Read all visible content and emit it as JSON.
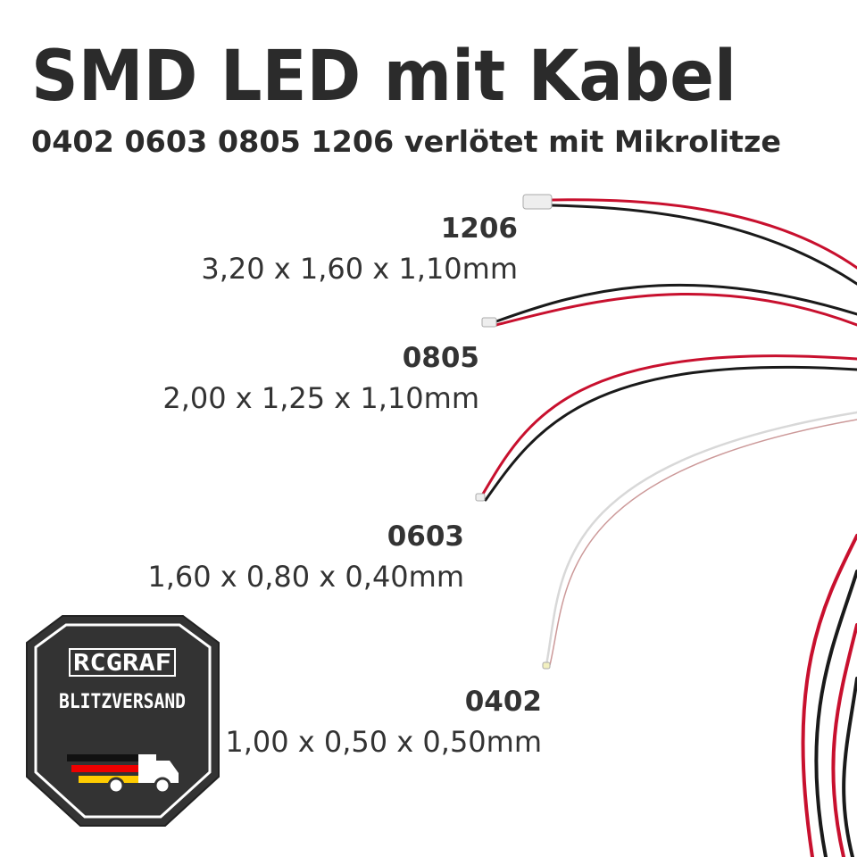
{
  "header": {
    "title": "SMD LED mit Kabel",
    "subtitle": "0402 0603 0805 1206 verlötet mit Mikrolitze"
  },
  "items": [
    {
      "code": "1206",
      "dimensions": "3,20 x 1,60 x 1,10mm"
    },
    {
      "code": "0805",
      "dimensions": "2,00 x 1,25 x 1,10mm"
    },
    {
      "code": "0603",
      "dimensions": "1,60 x 0,80 x 0,40mm"
    },
    {
      "code": "0402",
      "dimensions": "1,00 x 0,50 x 0,50mm"
    }
  ],
  "badge": {
    "brand": "RCGRAF",
    "service": "BLITZVERSAND"
  }
}
